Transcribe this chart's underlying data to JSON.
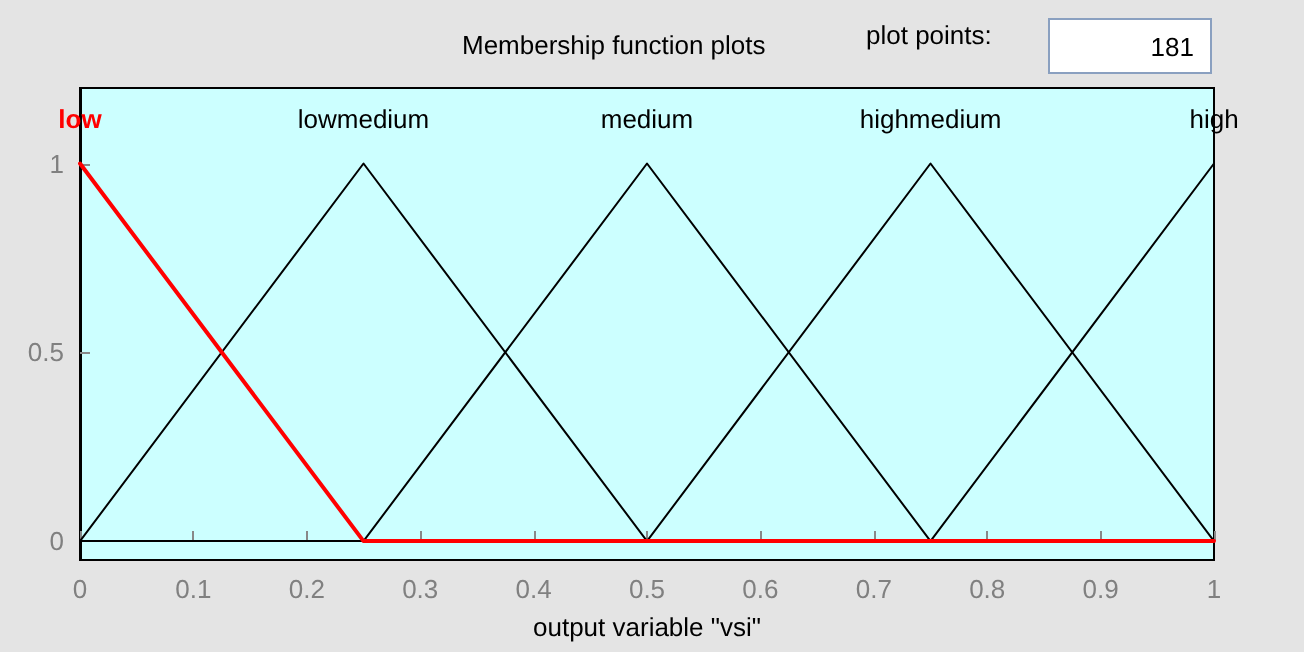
{
  "chart_data": {
    "type": "line",
    "title": "Membership function plots",
    "xlabel": "output variable \"vsi\"",
    "annotations": [
      "plot points:",
      "181"
    ],
    "xlim": [
      0,
      1
    ],
    "xticks": [
      0,
      0.1,
      0.2,
      0.3,
      0.4,
      0.5,
      0.6,
      0.7,
      0.8,
      0.9,
      1
    ],
    "ylim": [
      -0.05,
      1.2
    ],
    "yticks": [
      0,
      0.5,
      1
    ],
    "grid": false,
    "legend": false,
    "marker": "none",
    "line_style": "solid",
    "series": [
      {
        "name": "lowmedium",
        "color": "#000000",
        "x": [
          0,
          0.25,
          0.5,
          1
        ],
        "values": [
          0,
          1,
          0,
          0
        ]
      },
      {
        "name": "medium",
        "color": "#000000",
        "x": [
          0,
          0.25,
          0.5,
          0.75,
          1
        ],
        "values": [
          0,
          0,
          1,
          0,
          0
        ]
      },
      {
        "name": "highmedium",
        "color": "#000000",
        "x": [
          0,
          0.5,
          0.75,
          1
        ],
        "values": [
          0,
          0,
          1,
          0
        ]
      },
      {
        "name": "high",
        "color": "#000000",
        "x": [
          0,
          0.75,
          1
        ],
        "values": [
          0,
          0,
          1
        ]
      },
      {
        "name": "low",
        "color": "#ff0000",
        "x": [
          0,
          0.25,
          1
        ],
        "values": [
          1,
          0,
          0
        ]
      }
    ]
  }
}
